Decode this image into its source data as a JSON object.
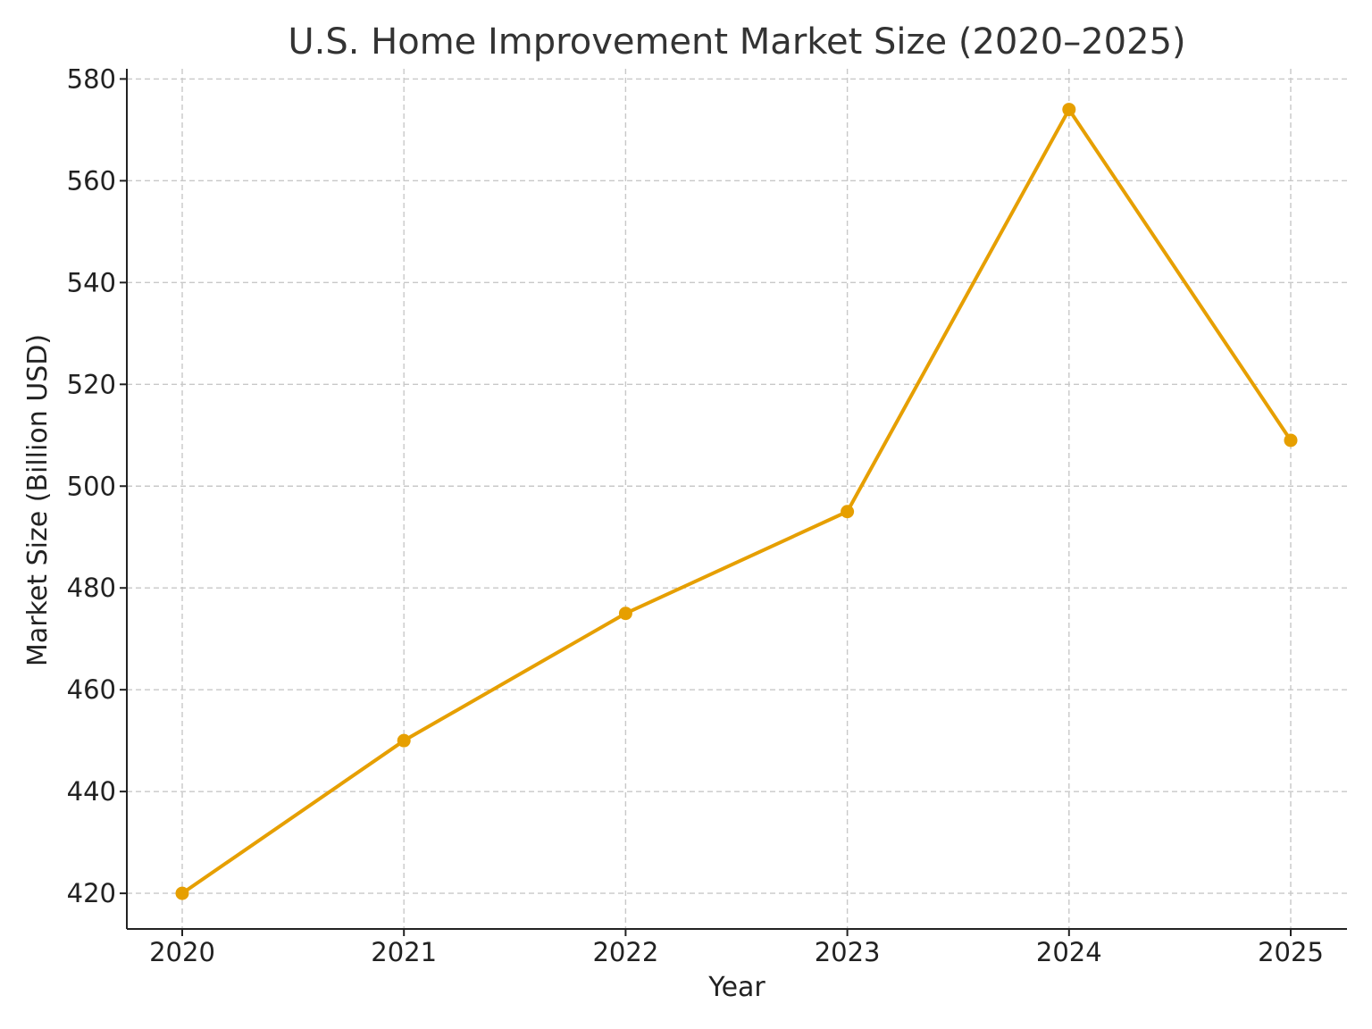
{
  "chart_data": {
    "type": "line",
    "title": "U.S. Home Improvement Market Size (2020–2025)",
    "xlabel": "Year",
    "ylabel": "Market Size (Billion USD)",
    "categories": [
      "2020",
      "2021",
      "2022",
      "2023",
      "2024",
      "2025"
    ],
    "series": [
      {
        "values": [
          420,
          450,
          475,
          495,
          574,
          509
        ]
      }
    ],
    "ylim": [
      413,
      582
    ],
    "yticks": [
      420,
      440,
      460,
      480,
      500,
      520,
      540,
      560,
      580
    ],
    "grid": true,
    "legend": "none",
    "line_color": "#E69F00",
    "marker": "circle"
  }
}
